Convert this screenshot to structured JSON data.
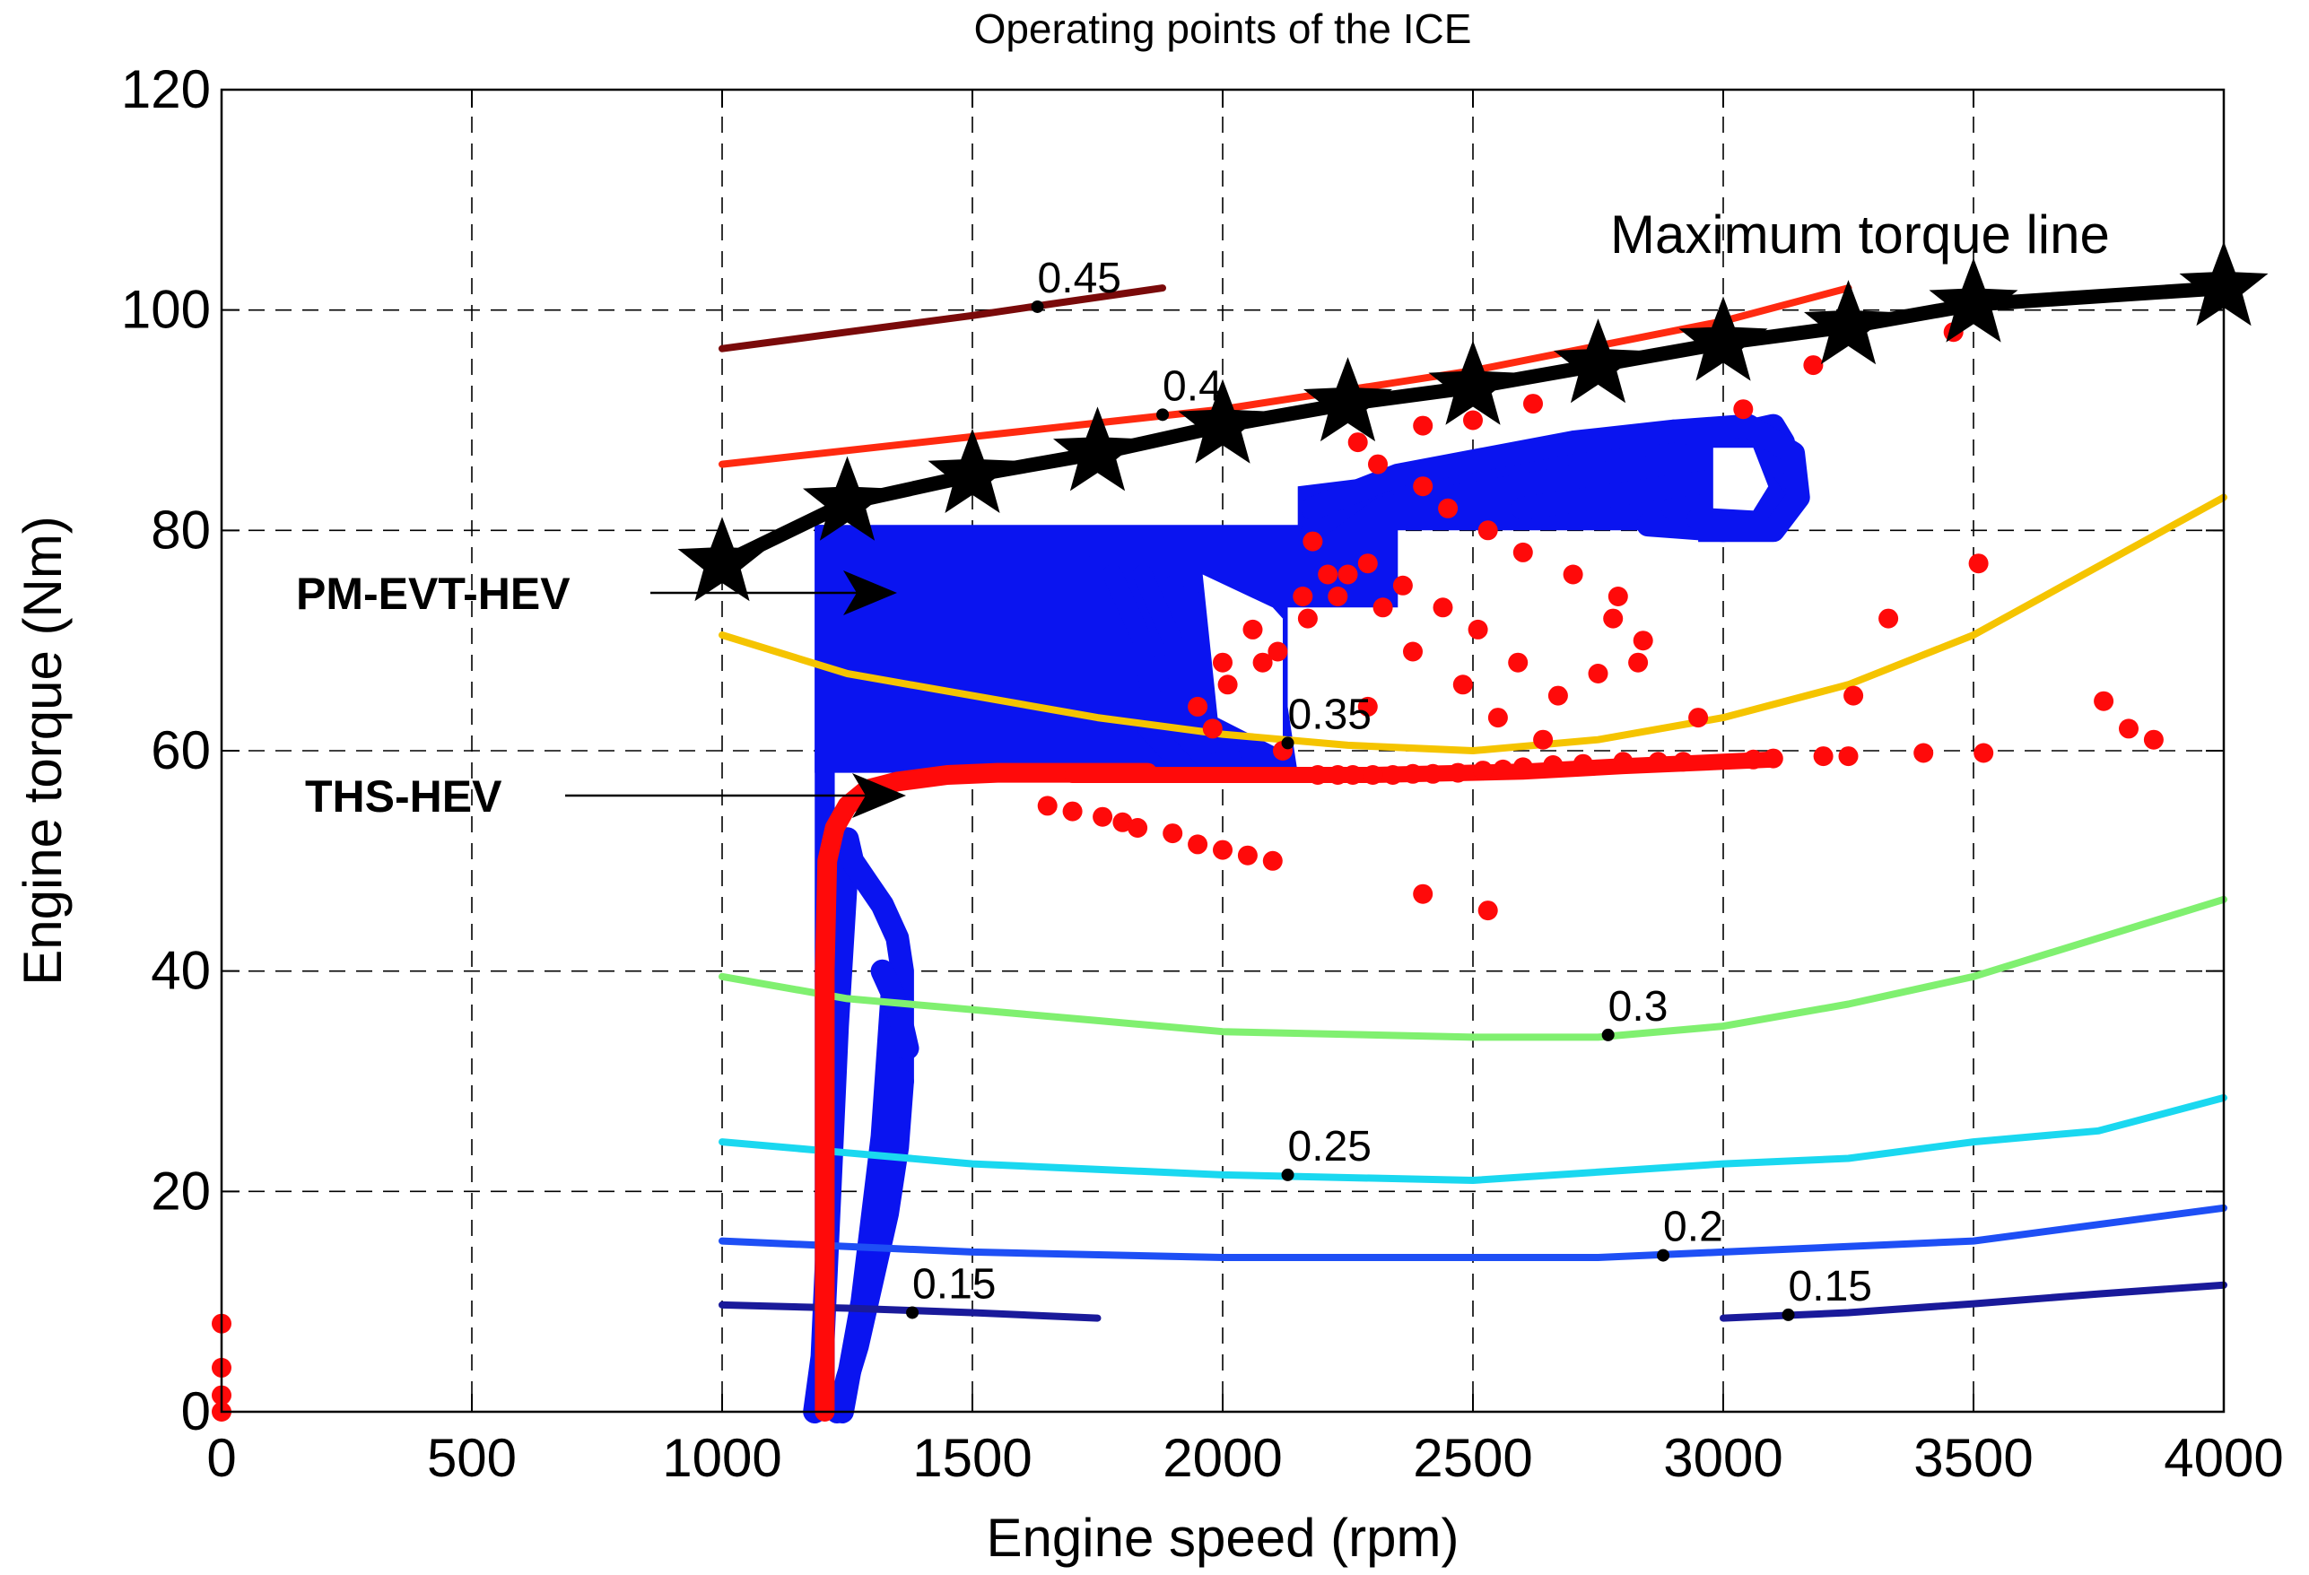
{
  "chart_data": {
    "type": "scatter",
    "title": "Operating points of the ICE",
    "xlabel": "Engine speed (rpm)",
    "ylabel": "Engine torque (Nm)",
    "xlim": [
      0,
      4000
    ],
    "ylim": [
      0,
      120
    ],
    "grid": true,
    "xticks": [
      0,
      500,
      1000,
      1500,
      2000,
      2500,
      3000,
      3500,
      4000
    ],
    "yticks": [
      0,
      20,
      40,
      60,
      80,
      100,
      120
    ],
    "efficiency_contours": [
      {
        "level": "0.45",
        "color": "#7a0a0a",
        "x": [
          1000,
          1250,
          1500,
          1650,
          1880
        ],
        "y": [
          96.5,
          98,
          99.5,
          100.5,
          102
        ],
        "label_at": [
          1630,
          100.3
        ]
      },
      {
        "level": "0.4",
        "color": "#ff2a10",
        "x": [
          1000,
          1500,
          2000,
          2500,
          3000,
          3250
        ],
        "y": [
          86,
          88.5,
          91,
          94.5,
          99,
          102
        ],
        "label_at": [
          1880,
          90.5
        ]
      },
      {
        "level": "0.35",
        "color": "#f5c400",
        "x": [
          1000,
          1250,
          1750,
          2000,
          2250,
          2500,
          2750,
          3000,
          3250,
          3500,
          4000
        ],
        "y": [
          70.5,
          67,
          63,
          61.5,
          60.5,
          60,
          61,
          63,
          66,
          70.5,
          83
        ],
        "label_at": [
          2130,
          60.7
        ]
      },
      {
        "level": "0.3",
        "color": "#80f070",
        "x": [
          1000,
          1250,
          1500,
          1750,
          2000,
          2500,
          2750,
          3000,
          3250,
          3500,
          4000
        ],
        "y": [
          39.5,
          37.5,
          36.5,
          35.5,
          34.5,
          34,
          34,
          35,
          37,
          39.5,
          46.5
        ],
        "label_at": [
          2770,
          34.2
        ]
      },
      {
        "level": "0.25",
        "color": "#1ad8f0",
        "x": [
          1000,
          1250,
          1500,
          2000,
          2500,
          3000,
          3250,
          3500,
          3750,
          4000
        ],
        "y": [
          24.5,
          23.5,
          22.5,
          21.5,
          21,
          22.5,
          23,
          24.5,
          25.5,
          28.5
        ],
        "label_at": [
          2130,
          21.5
        ]
      },
      {
        "level": "0.2",
        "color": "#1e4ff5",
        "x": [
          1000,
          1500,
          2000,
          2500,
          2750,
          3000,
          3250,
          3500,
          3750,
          4000
        ],
        "y": [
          15.5,
          14.5,
          14,
          14,
          14,
          14.5,
          15,
          15.5,
          17,
          18.5
        ],
        "label_at": [
          2880,
          14.2
        ]
      },
      {
        "level": "0.15",
        "color": "#1a1a9a",
        "x": [
          1000,
          1250,
          1500,
          1750
        ],
        "y": [
          9.7,
          9.4,
          9,
          8.5
        ],
        "label_at": [
          1380,
          9.0
        ]
      },
      {
        "level": "0.15",
        "color": "#1a1a9a",
        "x": [
          3000,
          3250,
          3500,
          3750,
          4000
        ],
        "y": [
          8.5,
          9,
          9.8,
          10.7,
          11.5
        ],
        "label_at": [
          3130,
          8.8
        ]
      }
    ],
    "max_torque_line": {
      "name": "Maximum torque line",
      "x": [
        1000,
        1250,
        1500,
        1750,
        2000,
        2250,
        2500,
        2750,
        3000,
        3250,
        3500,
        4000
      ],
      "y": [
        77,
        82.5,
        85,
        87,
        89.5,
        91.5,
        93,
        95,
        97,
        98.5,
        100.5,
        102
      ]
    },
    "series": [
      {
        "name": "PM-EVT-HEV",
        "color": "#0a14f0",
        "description": "blue operating points"
      },
      {
        "name": "THS-HEV",
        "color": "#ff0a0a",
        "description": "red operating points"
      }
    ],
    "red_scatter": {
      "x": [
        0,
        0,
        0,
        0,
        1650,
        1700,
        1760,
        1800,
        1830,
        1900,
        1950,
        2000,
        2050,
        2100,
        2190,
        2230,
        2260,
        2300,
        2340,
        2380,
        2420,
        2470,
        2520,
        2560,
        2600,
        2660,
        2720,
        2800,
        2870,
        2920,
        3060,
        3100,
        3200,
        3250,
        3400,
        3520,
        3760,
        3810,
        3860,
        2400,
        2530,
        1950,
        2000,
        2060,
        2110,
        2170,
        2230,
        2290,
        2360,
        2440,
        2510,
        2590,
        2670,
        2750,
        2840,
        2950,
        3040,
        3180,
        3260,
        3330,
        3460,
        3510,
        2270,
        2310,
        2400,
        2450,
        2530,
        2600,
        2700,
        2790,
        2400,
        2500,
        2620,
        2180,
        2250,
        2320,
        2380,
        2480,
        2550,
        2640,
        2780,
        2830,
        2210,
        2160,
        2080,
        2010,
        1980,
        2120,
        2290
      ],
      "y": [
        8,
        4,
        1.5,
        0,
        55,
        54.5,
        54,
        53.5,
        53,
        52.5,
        51.5,
        51,
        50.5,
        50,
        57.8,
        57.8,
        57.8,
        57.8,
        57.8,
        57.9,
        57.9,
        58,
        58.2,
        58.3,
        58.5,
        58.7,
        58.8,
        59,
        59,
        59,
        59.2,
        59.3,
        59.5,
        59.5,
        59.8,
        59.8,
        64.5,
        62,
        61,
        47,
        45.5,
        64,
        68,
        71,
        69,
        72,
        74,
        77,
        75,
        73,
        71,
        68,
        65,
        67,
        70,
        63,
        91,
        95,
        65,
        72,
        98,
        77,
        88,
        86,
        84,
        82,
        80,
        78,
        76,
        74,
        89.5,
        90,
        91.5,
        79,
        76,
        73,
        69,
        66,
        63,
        61,
        72,
        68,
        76,
        74,
        68,
        66,
        62,
        60,
        64
      ]
    }
  }
}
